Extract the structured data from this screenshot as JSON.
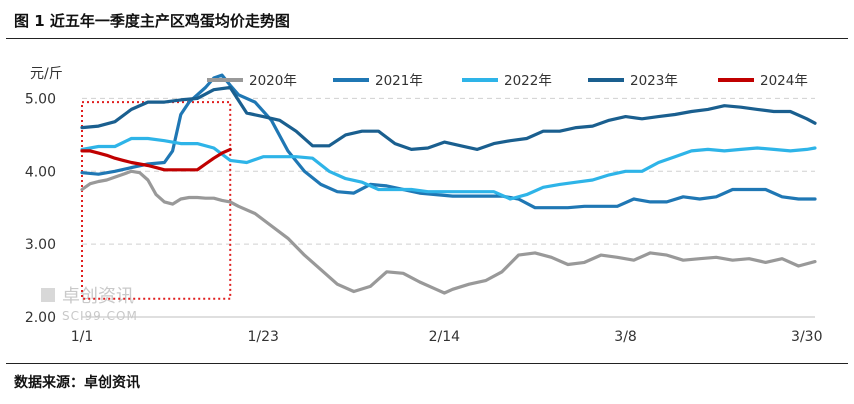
{
  "title": "图 1 近五年一季度主产区鸡蛋均价走势图",
  "source": "数据来源：卓创资讯",
  "watermark": {
    "cn": "卓创资讯",
    "en": "SCI99.COM"
  },
  "chart_data": {
    "type": "line",
    "title": "图 1 近五年一季度主产区鸡蛋均价走势图",
    "ylabel": "元/斤",
    "xlabel": "",
    "ylim": [
      2.0,
      5.5
    ],
    "yticks": [
      2.0,
      3.0,
      4.0,
      5.0
    ],
    "ytick_labels": [
      "2.00",
      "3.00",
      "4.00",
      "5.00"
    ],
    "xlim": [
      1,
      90
    ],
    "xticks": [
      1,
      23,
      45,
      67,
      89
    ],
    "xtick_labels": [
      "1/1",
      "1/23",
      "2/14",
      "3/8",
      "3/30"
    ],
    "grid": "horizontal dashed",
    "legend_position": "top",
    "highlight_box": {
      "x": [
        1,
        19
      ],
      "y": [
        2.25,
        4.95
      ]
    },
    "series": [
      {
        "name": "2020年",
        "color": "#999999",
        "x": [
          1,
          2,
          3,
          4,
          5,
          6,
          7,
          8,
          9,
          10,
          11,
          12,
          13,
          14,
          15,
          16,
          17,
          18,
          19,
          20,
          22,
          24,
          26,
          28,
          30,
          32,
          34,
          36,
          38,
          40,
          42,
          44,
          45,
          46,
          48,
          50,
          52,
          54,
          56,
          58,
          60,
          62,
          64,
          66,
          68,
          70,
          72,
          74,
          76,
          78,
          80,
          82,
          84,
          86,
          88,
          90
        ],
        "values": [
          3.75,
          3.83,
          3.86,
          3.88,
          3.92,
          3.96,
          4.0,
          3.98,
          3.88,
          3.68,
          3.58,
          3.55,
          3.62,
          3.64,
          3.64,
          3.63,
          3.63,
          3.6,
          3.58,
          3.52,
          3.42,
          3.25,
          3.08,
          2.85,
          2.65,
          2.45,
          2.35,
          2.42,
          2.62,
          2.6,
          2.48,
          2.38,
          2.33,
          2.38,
          2.45,
          2.5,
          2.62,
          2.85,
          2.88,
          2.82,
          2.72,
          2.75,
          2.85,
          2.82,
          2.78,
          2.88,
          2.85,
          2.78,
          2.8,
          2.82,
          2.78,
          2.8,
          2.75,
          2.8,
          2.7,
          2.76
        ]
      },
      {
        "name": "2021年",
        "color": "#1f77b4",
        "x": [
          1,
          3,
          5,
          7,
          9,
          11,
          12,
          13,
          14,
          15,
          16,
          17,
          18,
          19,
          20,
          22,
          24,
          26,
          28,
          30,
          32,
          34,
          36,
          38,
          40,
          42,
          44,
          46,
          48,
          50,
          52,
          54,
          56,
          58,
          60,
          62,
          64,
          66,
          68,
          70,
          72,
          74,
          76,
          78,
          80,
          82,
          84,
          86,
          88,
          90
        ],
        "values": [
          3.98,
          3.96,
          4.0,
          4.05,
          4.1,
          4.12,
          4.28,
          4.78,
          4.95,
          5.05,
          5.15,
          5.28,
          5.32,
          5.18,
          5.05,
          4.95,
          4.7,
          4.28,
          4.0,
          3.82,
          3.72,
          3.7,
          3.82,
          3.8,
          3.75,
          3.7,
          3.68,
          3.66,
          3.66,
          3.66,
          3.66,
          3.62,
          3.5,
          3.5,
          3.5,
          3.52,
          3.52,
          3.52,
          3.62,
          3.58,
          3.58,
          3.65,
          3.62,
          3.65,
          3.75,
          3.75,
          3.75,
          3.65,
          3.62,
          3.62
        ]
      },
      {
        "name": "2022年",
        "color": "#2eb4e8",
        "x": [
          1,
          3,
          5,
          7,
          9,
          11,
          13,
          15,
          17,
          19,
          21,
          23,
          25,
          27,
          29,
          31,
          33,
          35,
          37,
          39,
          41,
          43,
          45,
          47,
          49,
          51,
          53,
          55,
          57,
          59,
          61,
          63,
          65,
          67,
          69,
          71,
          73,
          75,
          77,
          79,
          81,
          83,
          85,
          87,
          89,
          90
        ],
        "values": [
          4.3,
          4.34,
          4.34,
          4.45,
          4.45,
          4.42,
          4.38,
          4.38,
          4.32,
          4.15,
          4.12,
          4.2,
          4.2,
          4.2,
          4.18,
          4.0,
          3.9,
          3.85,
          3.75,
          3.75,
          3.75,
          3.72,
          3.72,
          3.72,
          3.72,
          3.72,
          3.62,
          3.68,
          3.78,
          3.82,
          3.85,
          3.88,
          3.95,
          4.0,
          4.0,
          4.12,
          4.2,
          4.28,
          4.3,
          4.28,
          4.3,
          4.32,
          4.3,
          4.28,
          4.3,
          4.32
        ]
      },
      {
        "name": "2023年",
        "color": "#1a5f8f",
        "x": [
          1,
          3,
          5,
          7,
          9,
          11,
          13,
          15,
          17,
          19,
          21,
          23,
          25,
          27,
          29,
          31,
          33,
          35,
          37,
          39,
          41,
          43,
          45,
          47,
          49,
          51,
          53,
          55,
          57,
          59,
          61,
          63,
          65,
          67,
          69,
          71,
          73,
          75,
          77,
          79,
          81,
          83,
          85,
          87,
          89,
          90
        ],
        "values": [
          4.6,
          4.62,
          4.68,
          4.85,
          4.95,
          4.95,
          4.98,
          5.0,
          5.12,
          5.15,
          4.8,
          4.75,
          4.7,
          4.55,
          4.35,
          4.35,
          4.5,
          4.55,
          4.55,
          4.38,
          4.3,
          4.32,
          4.4,
          4.35,
          4.3,
          4.38,
          4.42,
          4.45,
          4.55,
          4.55,
          4.6,
          4.62,
          4.7,
          4.75,
          4.72,
          4.75,
          4.78,
          4.82,
          4.85,
          4.9,
          4.88,
          4.85,
          4.82,
          4.82,
          4.72,
          4.66
        ]
      },
      {
        "name": "2024年",
        "color": "#c00000",
        "x": [
          1,
          2,
          3,
          4,
          5,
          6,
          7,
          8,
          9,
          10,
          11,
          12,
          13,
          14,
          15,
          16,
          17,
          18,
          19
        ],
        "values": [
          4.28,
          4.28,
          4.25,
          4.22,
          4.18,
          4.15,
          4.12,
          4.1,
          4.08,
          4.05,
          4.02,
          4.02,
          4.02,
          4.02,
          4.02,
          4.1,
          4.18,
          4.25,
          4.3
        ]
      }
    ]
  }
}
